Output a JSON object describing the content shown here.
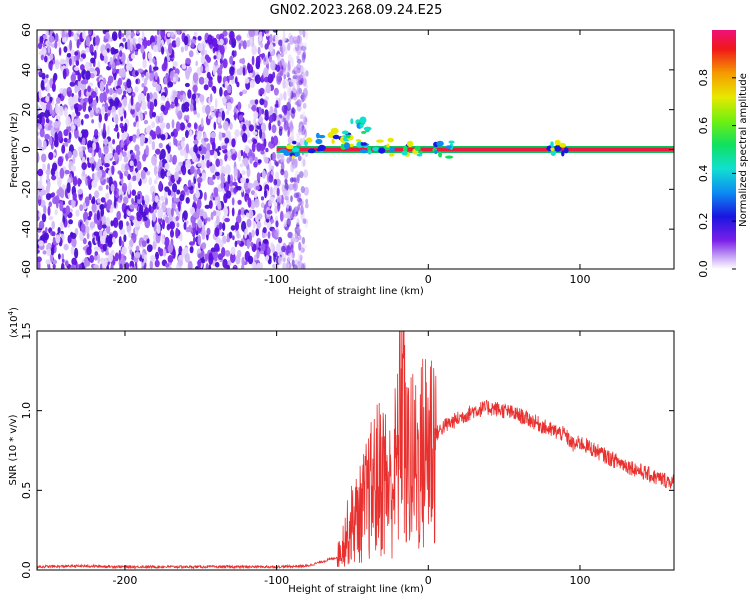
{
  "title": "GN02.2023.268.09.24.E25",
  "chart_data": [
    {
      "type": "heatmap",
      "xlabel": "Height of straight line (km)",
      "ylabel": "Frequency (Hz)",
      "xlim": [
        -258,
        162
      ],
      "ylim": [
        -60,
        60
      ],
      "xticks": [
        "-200",
        "-100",
        "0",
        "100"
      ],
      "yticks": [
        "-60",
        "-40",
        "-20",
        "0",
        "20",
        "40",
        "60"
      ],
      "colorbar": {
        "label": "Normalized spectral amplitude",
        "range": [
          0,
          1
        ],
        "ticks": [
          "0.0",
          "0.2",
          "0.4",
          "0.6",
          "0.8"
        ]
      },
      "noise_region_x": [
        -258,
        -80
      ],
      "features": [
        {
          "x": -90,
          "y": 0
        },
        {
          "x": -75,
          "y": 3
        },
        {
          "x": -60,
          "y": 6
        },
        {
          "x": -50,
          "y": 5
        },
        {
          "x": -45,
          "y": 12
        },
        {
          "x": -40,
          "y": 2
        },
        {
          "x": -30,
          "y": 1
        },
        {
          "x": -10,
          "y": 0
        },
        {
          "x": 10,
          "y": 0
        },
        {
          "x": 85,
          "y": 1
        }
      ],
      "carrier_band": {
        "x": [
          -100,
          162
        ],
        "y": 0
      }
    },
    {
      "type": "line",
      "xlabel": "Height of straight line (km)",
      "ylabel": "SNR (10 * v/v)",
      "yscale_label": "(x10",
      "yscale_exp": "4",
      "yscale_close": ")",
      "xlim": [
        -258,
        162
      ],
      "ylim": [
        0,
        1.5
      ],
      "xticks": [
        "-200",
        "-100",
        "0",
        "100"
      ],
      "yticks": [
        "0.0",
        "0.5",
        "1.0",
        "1.5"
      ],
      "series": [
        {
          "color": "#e8312f",
          "x": [
            -258,
            -230,
            -200,
            -150,
            -100,
            -80,
            -60,
            -55,
            -50,
            -45,
            -40,
            -35,
            -30,
            -25,
            -20,
            -17,
            -15,
            -12,
            -10,
            -5,
            0,
            10,
            20,
            30,
            40,
            50,
            60,
            70,
            80,
            90,
            96,
            100,
            110,
            120,
            130,
            140,
            150,
            162
          ],
          "y": [
            0.02,
            0.025,
            0.02,
            0.02,
            0.02,
            0.025,
            0.08,
            0.2,
            0.3,
            0.35,
            0.45,
            0.55,
            0.6,
            0.5,
            0.7,
            1.5,
            0.6,
            0.75,
            0.65,
            0.7,
            0.8,
            0.9,
            0.95,
            1.0,
            1.02,
            1.0,
            0.97,
            0.93,
            0.88,
            0.85,
            0.78,
            0.8,
            0.75,
            0.7,
            0.66,
            0.62,
            0.58,
            0.55
          ]
        }
      ]
    }
  ]
}
